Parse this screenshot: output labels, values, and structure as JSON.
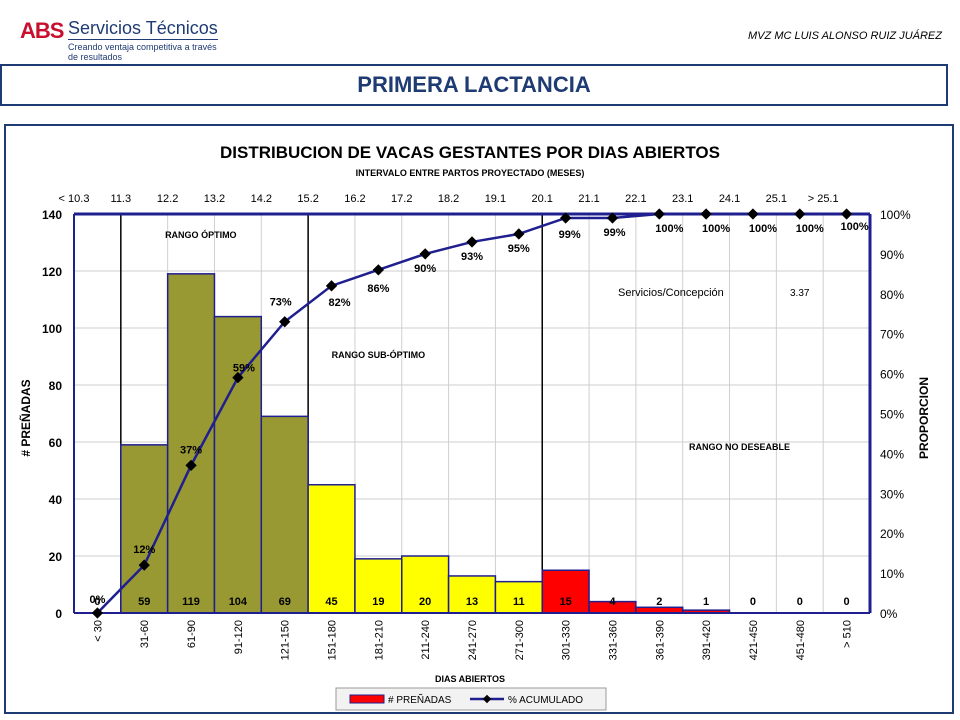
{
  "header": {
    "logo_mark": "ABS",
    "logo_name": "Servicios Técnicos",
    "logo_tagline": "Creando ventaja competitiva a través de resultados",
    "author": "MVZ MC LUIS ALONSO RUIZ JUÁREZ"
  },
  "page_title": "PRIMERA LACTANCIA",
  "chart_data": {
    "type": "bar",
    "title": "DISTRIBUCION DE VACAS GESTANTES POR DIAS ABIERTOS",
    "top_axis_label": "INTERVALO ENTRE PARTOS PROYECTADO (MESES)",
    "top_tick_labels": [
      "< 10.3",
      "11.3",
      "12.2",
      "13.2",
      "14.2",
      "15.2",
      "16.2",
      "17.2",
      "18.2",
      "19.1",
      "20.1",
      "21.1",
      "22.1",
      "23.1",
      "24.1",
      "25.1",
      "> 25.1"
    ],
    "xlabel": "DIAS ABIERTOS",
    "ylabel": "# PREÑADAS",
    "y2label": "PROPORCION",
    "categories": [
      "< 30",
      "31-60",
      "61-90",
      "91-120",
      "121-150",
      "151-180",
      "181-210",
      "211-240",
      "241-270",
      "271-300",
      "301-330",
      "331-360",
      "361-390",
      "391-420",
      "421-450",
      "451-480",
      "> 510"
    ],
    "series": [
      {
        "name": "# PREÑADAS",
        "values": [
          0,
          59,
          119,
          104,
          69,
          45,
          19,
          20,
          13,
          11,
          15,
          4,
          2,
          1,
          0,
          0,
          0
        ]
      },
      {
        "name": "% ACUMULADO",
        "values": [
          0,
          12,
          37,
          59,
          73,
          82,
          86,
          90,
          93,
          95,
          99,
          99,
          100,
          100,
          100,
          100,
          100
        ]
      }
    ],
    "bar_labels": [
      "0",
      "59",
      "119",
      "104",
      "69",
      "45",
      "19",
      "20",
      "13",
      "11",
      "15",
      "4",
      "2",
      "1",
      "0",
      "0",
      "0"
    ],
    "pct_labels": [
      "0%",
      "12%",
      "37%",
      "59%",
      "73%",
      "82%",
      "86%",
      "90%",
      "93%",
      "95%",
      "99%",
      "99%",
      "100%",
      "100%",
      "100%",
      "100%",
      "100%"
    ],
    "ylim": [
      0,
      140
    ],
    "yticks": [
      "0",
      "20",
      "40",
      "60",
      "80",
      "100",
      "120",
      "140"
    ],
    "y2lim": [
      0,
      100
    ],
    "y2ticks": [
      "0%",
      "10%",
      "20%",
      "30%",
      "40%",
      "50%",
      "60%",
      "70%",
      "80%",
      "90%",
      "100%"
    ],
    "zones": [
      {
        "label": "RANGO ÓPTIMO",
        "color": "#999933"
      },
      {
        "label": "RANGO SUB-ÓPTIMO",
        "color": "#ffff00"
      },
      {
        "label": "RANGO NO DESEABLE",
        "color": "#ff0000"
      }
    ],
    "zone_bounds": [
      1,
      5,
      10
    ],
    "annotation": {
      "label": "Servicios/Concepción",
      "value": "3.37"
    },
    "grid": true,
    "legend_position": "bottom",
    "colors": {
      "line": "#1f1f8f",
      "marker": "#000000",
      "axis": "#1f1f8f"
    }
  }
}
